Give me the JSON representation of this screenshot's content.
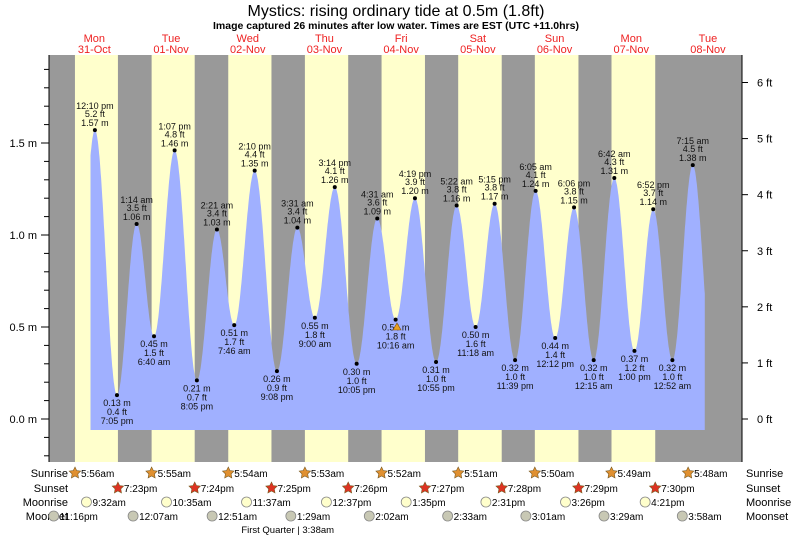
{
  "chart_data": {
    "type": "area",
    "title": "Mystics: rising  ordinary tide at 0.5m (1.8ft)",
    "subtitle": "Image captured 26 minutes after low water. Times are EST (UTC +11.0hrs)",
    "ylabel_left_unit": "m",
    "ylabel_right_unit": "ft",
    "ylim_m": [
      -0.2,
      2.0
    ],
    "y_ticks_m": [
      "0.0 m",
      "0.5 m",
      "1.0 m",
      "1.5 m"
    ],
    "y_tick_values_m": [
      0.0,
      0.5,
      1.0,
      1.5
    ],
    "y_ticks_ft": [
      "0 ft",
      "1 ft",
      "2 ft",
      "3 ft",
      "4 ft",
      "5 ft",
      "6 ft"
    ],
    "y_tick_values_ft": [
      0,
      1,
      2,
      3,
      4,
      5,
      6
    ],
    "days": [
      {
        "name": "Mon",
        "date": "31-Oct"
      },
      {
        "name": "Tue",
        "date": "01-Nov"
      },
      {
        "name": "Wed",
        "date": "02-Nov"
      },
      {
        "name": "Thu",
        "date": "03-Nov"
      },
      {
        "name": "Fri",
        "date": "04-Nov"
      },
      {
        "name": "Sat",
        "date": "05-Nov"
      },
      {
        "name": "Sun",
        "date": "06-Nov"
      },
      {
        "name": "Mon",
        "date": "07-Nov"
      },
      {
        "name": "Tue",
        "date": "08-Nov"
      }
    ],
    "tides": [
      {
        "hour": 12.17,
        "type": "high",
        "time": "12:10 pm",
        "ft": "5.2 ft",
        "m": "1.57 m",
        "value": 1.57
      },
      {
        "hour": 19.08,
        "type": "low",
        "time": "7:05 pm",
        "ft": "0.4 ft",
        "m": "0.13 m",
        "value": 0.13
      },
      {
        "hour": 25.23,
        "type": "high",
        "time": "1:14 am",
        "ft": "3.5 ft",
        "m": "1.06 m",
        "value": 1.06
      },
      {
        "hour": 30.67,
        "type": "low",
        "time": "6:40 am",
        "ft": "1.5 ft",
        "m": "0.45 m",
        "value": 0.45
      },
      {
        "hour": 37.12,
        "type": "high",
        "time": "1:07 pm",
        "ft": "4.8 ft",
        "m": "1.46 m",
        "value": 1.46
      },
      {
        "hour": 44.08,
        "type": "low",
        "time": "8:05 pm",
        "ft": "0.7 ft",
        "m": "0.21 m",
        "value": 0.21
      },
      {
        "hour": 50.35,
        "type": "high",
        "time": "2:21 am",
        "ft": "3.4 ft",
        "m": "1.03 m",
        "value": 1.03
      },
      {
        "hour": 55.77,
        "type": "low",
        "time": "7:46 am",
        "ft": "1.7 ft",
        "m": "0.51 m",
        "value": 0.51
      },
      {
        "hour": 62.17,
        "type": "high",
        "time": "2:10 pm",
        "ft": "4.4 ft",
        "m": "1.35 m",
        "value": 1.35
      },
      {
        "hour": 69.13,
        "type": "low",
        "time": "9:08 pm",
        "ft": "0.9 ft",
        "m": "0.26 m",
        "value": 0.26
      },
      {
        "hour": 75.52,
        "type": "high",
        "time": "3:31 am",
        "ft": "3.4 ft",
        "m": "1.04 m",
        "value": 1.04
      },
      {
        "hour": 81.0,
        "type": "low",
        "time": "9:00 am",
        "ft": "1.8 ft",
        "m": "0.55 m",
        "value": 0.55
      },
      {
        "hour": 87.23,
        "type": "high",
        "time": "3:14 pm",
        "ft": "4.1 ft",
        "m": "1.26 m",
        "value": 1.26
      },
      {
        "hour": 94.08,
        "type": "low",
        "time": "10:05 pm",
        "ft": "1.0 ft",
        "m": "0.30 m",
        "value": 0.3
      },
      {
        "hour": 100.52,
        "type": "high",
        "time": "4:31 am",
        "ft": "3.6 ft",
        "m": "1.09 m",
        "value": 1.09
      },
      {
        "hour": 106.27,
        "type": "low",
        "time": "10:16 am",
        "ft": "1.8 ft",
        "m": "0.54 m",
        "value": 0.54
      },
      {
        "hour": 112.32,
        "type": "high",
        "time": "4:19 pm",
        "ft": "3.9 ft",
        "m": "1.20 m",
        "value": 1.2
      },
      {
        "hour": 118.92,
        "type": "low",
        "time": "10:55 pm",
        "ft": "1.0 ft",
        "m": "0.31 m",
        "value": 0.31
      },
      {
        "hour": 125.37,
        "type": "high",
        "time": "5:22 am",
        "ft": "3.8 ft",
        "m": "1.16 m",
        "value": 1.16
      },
      {
        "hour": 131.3,
        "type": "low",
        "time": "11:18 am",
        "ft": "1.6 ft",
        "m": "0.50 m",
        "value": 0.5
      },
      {
        "hour": 137.25,
        "type": "high",
        "time": "5:15 pm",
        "ft": "3.8 ft",
        "m": "1.17 m",
        "value": 1.17
      },
      {
        "hour": 143.65,
        "type": "low",
        "time": "11:39 pm",
        "ft": "1.0 ft",
        "m": "0.32 m",
        "value": 0.32
      },
      {
        "hour": 150.08,
        "type": "high",
        "time": "6:05 am",
        "ft": "4.1 ft",
        "m": "1.24 m",
        "value": 1.24
      },
      {
        "hour": 156.2,
        "type": "low",
        "time": "12:12 pm",
        "ft": "1.4 ft",
        "m": "0.44 m",
        "value": 0.44
      },
      {
        "hour": 162.1,
        "type": "high",
        "time": "6:06 pm",
        "ft": "3.8 ft",
        "m": "1.15 m",
        "value": 1.15
      },
      {
        "hour": 168.25,
        "type": "low",
        "time": "12:15 am",
        "ft": "1.0 ft",
        "m": "0.32 m",
        "value": 0.32
      },
      {
        "hour": 174.7,
        "type": "high",
        "time": "6:42 am",
        "ft": "4.3 ft",
        "m": "1.31 m",
        "value": 1.31
      },
      {
        "hour": 181.0,
        "type": "low",
        "time": "1:00 pm",
        "ft": "1.2 ft",
        "m": "0.37 m",
        "value": 0.37
      },
      {
        "hour": 186.87,
        "type": "high",
        "time": "6:52 pm",
        "ft": "3.7 ft",
        "m": "1.14 m",
        "value": 1.14
      },
      {
        "hour": 192.87,
        "type": "low",
        "time": "12:52 am",
        "ft": "1.0 ft",
        "m": "0.32 m",
        "value": 0.32
      },
      {
        "hour": 199.25,
        "type": "high",
        "time": "7:15 am",
        "ft": "4.5 ft",
        "m": "1.38 m",
        "value": 1.38
      }
    ],
    "current_marker_hour": 106.7,
    "current_marker_m": 0.5,
    "row_labels": {
      "sunrise": "Sunrise",
      "sunset": "Sunset",
      "moonrise": "Moonrise",
      "moonset": "Moonset"
    },
    "sunrise": [
      {
        "hour": 5.93,
        "label": "5:56am"
      },
      {
        "hour": 29.92,
        "label": "5:55am"
      },
      {
        "hour": 53.9,
        "label": "5:54am"
      },
      {
        "hour": 77.88,
        "label": "5:53am"
      },
      {
        "hour": 101.87,
        "label": "5:52am"
      },
      {
        "hour": 125.85,
        "label": "5:51am"
      },
      {
        "hour": 149.83,
        "label": "5:50am"
      },
      {
        "hour": 173.82,
        "label": "5:49am"
      },
      {
        "hour": 197.8,
        "label": "5:48am"
      }
    ],
    "sunset": [
      {
        "hour": 19.38,
        "label": "7:23pm"
      },
      {
        "hour": 43.4,
        "label": "7:24pm"
      },
      {
        "hour": 67.42,
        "label": "7:25pm"
      },
      {
        "hour": 91.43,
        "label": "7:26pm"
      },
      {
        "hour": 115.45,
        "label": "7:27pm"
      },
      {
        "hour": 139.47,
        "label": "7:28pm"
      },
      {
        "hour": 163.48,
        "label": "7:29pm"
      },
      {
        "hour": 187.5,
        "label": "7:30pm"
      }
    ],
    "moonrise": [
      {
        "hour": 9.53,
        "label": "9:32am"
      },
      {
        "hour": 34.58,
        "label": "10:35am"
      },
      {
        "hour": 59.62,
        "label": "11:37am"
      },
      {
        "hour": 84.62,
        "label": "12:37pm"
      },
      {
        "hour": 109.58,
        "label": "1:35pm"
      },
      {
        "hour": 134.52,
        "label": "2:31pm"
      },
      {
        "hour": 159.43,
        "label": "3:26pm"
      },
      {
        "hour": 184.35,
        "label": "4:21pm"
      }
    ],
    "moonset": [
      {
        "hour": -0.73,
        "label": "11:16pm"
      },
      {
        "hour": 24.12,
        "label": "12:07am"
      },
      {
        "hour": 48.85,
        "label": "12:51am"
      },
      {
        "hour": 73.48,
        "label": "1:29am"
      },
      {
        "hour": 98.03,
        "label": "2:02am"
      },
      {
        "hour": 122.55,
        "label": "2:33am"
      },
      {
        "hour": 147.02,
        "label": "3:01am"
      },
      {
        "hour": 171.48,
        "label": "3:29am"
      },
      {
        "hour": 195.97,
        "label": "3:58am"
      }
    ],
    "moon_phase": {
      "hour": 75.63,
      "label": "First Quarter | 3:38am"
    },
    "colors": {
      "night": "#999999",
      "day": "#ffffcc",
      "water": "#a0b0ff",
      "day_label": "#ee2222",
      "sunrise": "#e09030",
      "sunset": "#dd3322",
      "moonrise": "#ffffcc",
      "moonset": "#c8c8b4"
    }
  }
}
